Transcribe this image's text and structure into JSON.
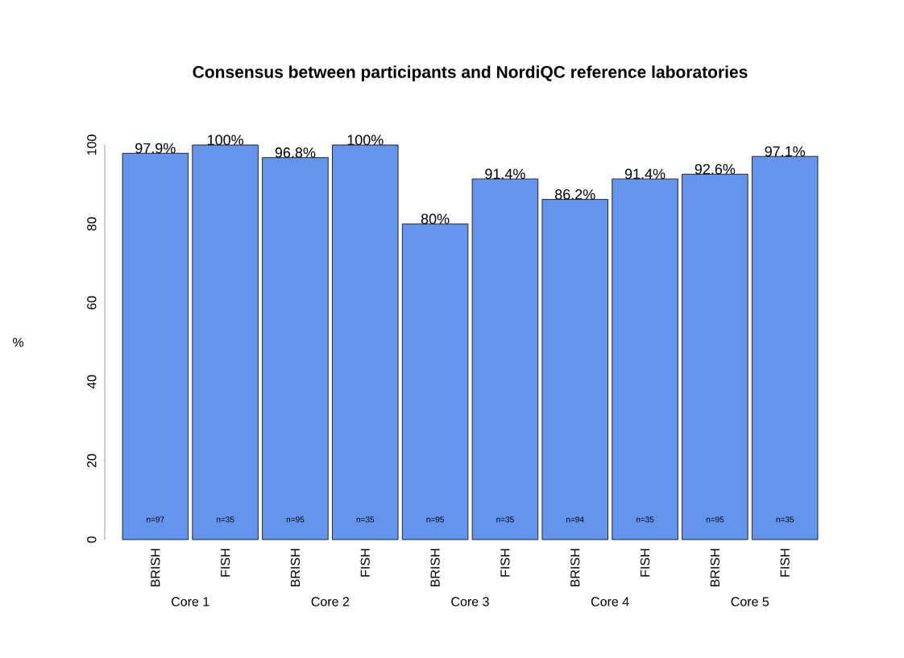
{
  "chart_data": {
    "type": "bar",
    "title": "Consensus between participants and NordiQC reference laboratories",
    "ylabel": "%",
    "categories": [
      "BRISH",
      "FISH",
      "BRISH",
      "FISH",
      "BRISH",
      "FISH",
      "BRISH",
      "FISH",
      "BRISH",
      "FISH"
    ],
    "values": [
      97.9,
      100,
      96.8,
      100,
      80,
      91.4,
      86.2,
      91.4,
      92.6,
      97.1
    ],
    "value_labels": [
      "97.9%",
      "100%",
      "96.8%",
      "100%",
      "80%",
      "91.4%",
      "86.2%",
      "91.4%",
      "92.6%",
      "97.1%"
    ],
    "color": "#6495ed",
    "ylim": [
      0,
      100
    ],
    "yticks": [
      0,
      20,
      40,
      60,
      80,
      100
    ],
    "annotations": [
      "n=97",
      "n=35",
      "n=95",
      "n=35",
      "n=95",
      "n=35",
      "n=94",
      "n=35",
      "n=95",
      "n=35",
      "Core 1",
      "Core 2",
      "Core 3",
      "Core 4",
      "Core 5"
    ]
  }
}
